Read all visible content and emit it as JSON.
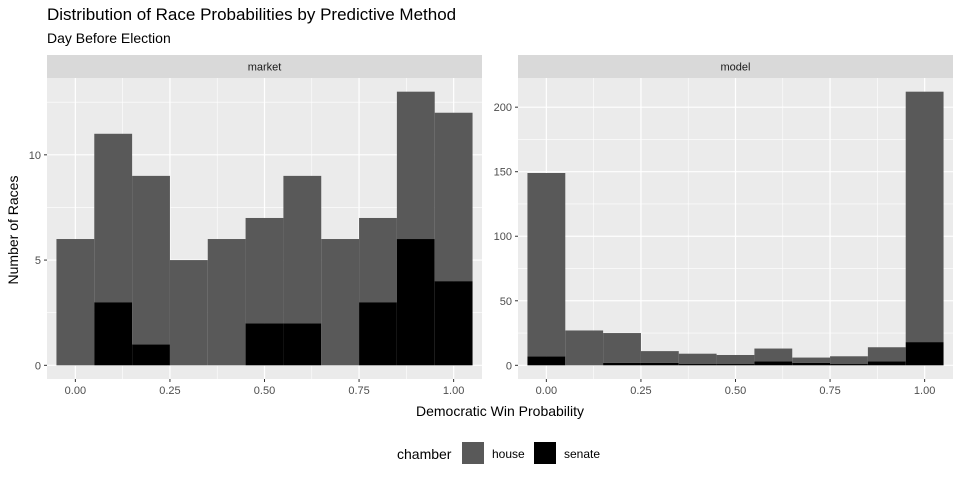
{
  "title": "Distribution of Race Probabilities by Predictive Method",
  "subtitle": "Day Before Election",
  "xlabel": "Democratic Win Probability",
  "ylabel": "Number of Races",
  "legend": {
    "title": "chamber",
    "items": [
      {
        "label": "house",
        "color": "#595959"
      },
      {
        "label": "senate",
        "color": "#000000"
      }
    ]
  },
  "colors": {
    "panel_bg": "#ebebeb",
    "strip_bg": "#d9d9d9",
    "grid": "#ffffff"
  },
  "chart_data": [
    {
      "type": "bar",
      "panel": "market",
      "stacked": true,
      "bin_width": 0.1,
      "x": [
        0.0,
        0.1,
        0.2,
        0.3,
        0.4,
        0.5,
        0.6,
        0.7,
        0.8,
        0.9,
        1.0
      ],
      "xticks": [
        0.0,
        0.25,
        0.5,
        0.75,
        1.0
      ],
      "xtick_labels": [
        "0.00",
        "0.25",
        "0.50",
        "0.75",
        "1.00"
      ],
      "xlim": [
        -0.075,
        1.075
      ],
      "ylim": [
        -0.65,
        13.65
      ],
      "yticks": [
        0,
        5,
        10
      ],
      "series": [
        {
          "name": "house",
          "values": [
            6,
            8,
            8,
            5,
            6,
            5,
            7,
            6,
            4,
            7,
            8
          ]
        },
        {
          "name": "senate",
          "values": [
            0,
            3,
            1,
            0,
            0,
            2,
            2,
            0,
            3,
            6,
            4
          ]
        }
      ]
    },
    {
      "type": "bar",
      "panel": "model",
      "stacked": true,
      "bin_width": 0.1,
      "x": [
        0.0,
        0.1,
        0.2,
        0.3,
        0.4,
        0.5,
        0.6,
        0.7,
        0.8,
        0.9,
        1.0
      ],
      "xticks": [
        0.0,
        0.25,
        0.5,
        0.75,
        1.0
      ],
      "xtick_labels": [
        "0.00",
        "0.25",
        "0.50",
        "0.75",
        "1.00"
      ],
      "xlim": [
        -0.075,
        1.075
      ],
      "ylim": [
        -10.6,
        222.6
      ],
      "yticks": [
        0,
        50,
        100,
        150,
        200
      ],
      "series": [
        {
          "name": "house",
          "values": [
            142,
            27,
            23,
            9,
            8,
            7,
            10,
            4,
            6,
            11,
            194
          ]
        },
        {
          "name": "senate",
          "values": [
            7,
            0,
            2,
            2,
            1,
            1,
            3,
            2,
            1,
            3,
            18
          ]
        }
      ]
    }
  ]
}
